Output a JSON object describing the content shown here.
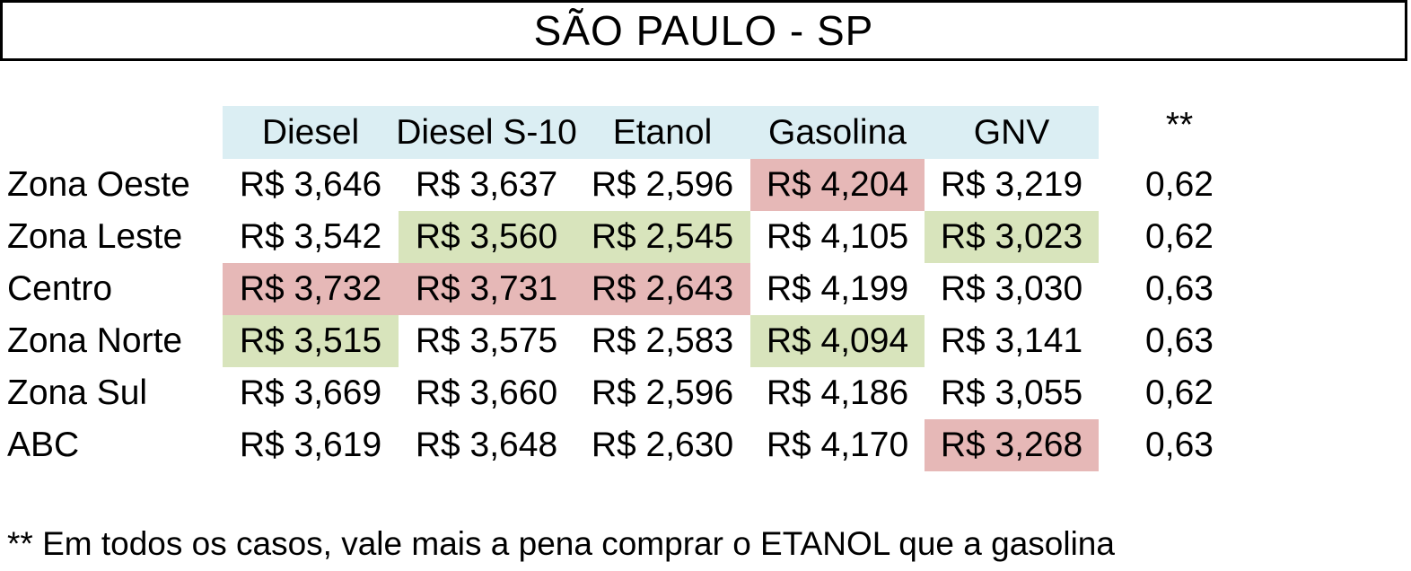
{
  "title": "SÃO PAULO - SP",
  "colors": {
    "header_bg": "#dbeef3",
    "highlight_high": "#e6b8b7",
    "highlight_low": "#d8e4bc"
  },
  "footnote": "** Em todos os casos, vale mais a pena comprar o ETANOL que a gasolina",
  "chart_data": {
    "type": "table",
    "title": "SÃO PAULO - SP",
    "columns": [
      "Diesel",
      "Diesel S-10",
      "Etanol",
      "Gasolina",
      "GNV",
      "**"
    ],
    "rows": [
      {
        "label": "Zona Oeste",
        "cells": [
          {
            "text": "R$ 3,646",
            "highlight": ""
          },
          {
            "text": "R$ 3,637",
            "highlight": ""
          },
          {
            "text": "R$ 2,596",
            "highlight": ""
          },
          {
            "text": "R$ 4,204",
            "highlight": "high"
          },
          {
            "text": "R$ 3,219",
            "highlight": ""
          },
          {
            "text": "0,62",
            "highlight": ""
          }
        ]
      },
      {
        "label": "Zona Leste",
        "cells": [
          {
            "text": "R$ 3,542",
            "highlight": ""
          },
          {
            "text": "R$ 3,560",
            "highlight": "low"
          },
          {
            "text": "R$ 2,545",
            "highlight": "low"
          },
          {
            "text": "R$ 4,105",
            "highlight": ""
          },
          {
            "text": "R$ 3,023",
            "highlight": "low"
          },
          {
            "text": "0,62",
            "highlight": ""
          }
        ]
      },
      {
        "label": "Centro",
        "cells": [
          {
            "text": "R$ 3,732",
            "highlight": "high"
          },
          {
            "text": "R$ 3,731",
            "highlight": "high"
          },
          {
            "text": "R$ 2,643",
            "highlight": "high"
          },
          {
            "text": "R$ 4,199",
            "highlight": ""
          },
          {
            "text": "R$ 3,030",
            "highlight": ""
          },
          {
            "text": "0,63",
            "highlight": ""
          }
        ]
      },
      {
        "label": "Zona Norte",
        "cells": [
          {
            "text": "R$ 3,515",
            "highlight": "low"
          },
          {
            "text": "R$ 3,575",
            "highlight": ""
          },
          {
            "text": "R$ 2,583",
            "highlight": ""
          },
          {
            "text": "R$ 4,094",
            "highlight": "low"
          },
          {
            "text": "R$ 3,141",
            "highlight": ""
          },
          {
            "text": "0,63",
            "highlight": ""
          }
        ]
      },
      {
        "label": "Zona Sul",
        "cells": [
          {
            "text": "R$ 3,669",
            "highlight": ""
          },
          {
            "text": "R$ 3,660",
            "highlight": ""
          },
          {
            "text": "R$ 2,596",
            "highlight": ""
          },
          {
            "text": "R$ 4,186",
            "highlight": ""
          },
          {
            "text": "R$ 3,055",
            "highlight": ""
          },
          {
            "text": "0,62",
            "highlight": ""
          }
        ]
      },
      {
        "label": "ABC",
        "cells": [
          {
            "text": "R$ 3,619",
            "highlight": ""
          },
          {
            "text": "R$ 3,648",
            "highlight": ""
          },
          {
            "text": "R$ 2,630",
            "highlight": ""
          },
          {
            "text": "R$ 4,170",
            "highlight": ""
          },
          {
            "text": "R$ 3,268",
            "highlight": "high"
          },
          {
            "text": "0,63",
            "highlight": ""
          }
        ]
      }
    ]
  }
}
